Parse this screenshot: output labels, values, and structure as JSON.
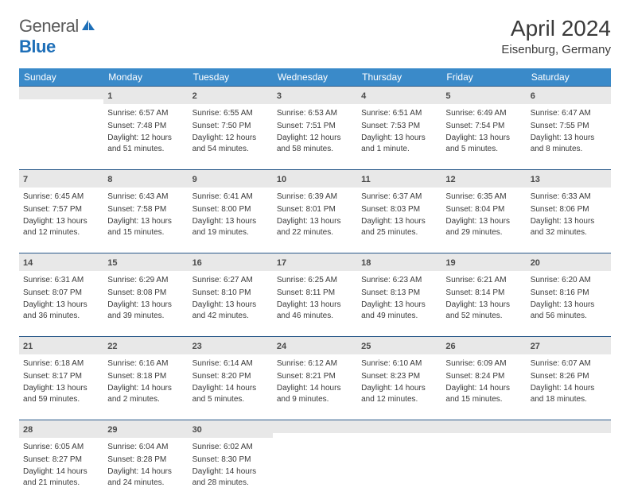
{
  "logo": {
    "text_gray": "General",
    "text_blue": "Blue"
  },
  "header": {
    "month": "April 2024",
    "location": "Eisenburg, Germany"
  },
  "weekdays": [
    "Sunday",
    "Monday",
    "Tuesday",
    "Wednesday",
    "Thursday",
    "Friday",
    "Saturday"
  ],
  "colors": {
    "header_bg": "#3a8ac9",
    "daynum_bg": "#e8e8e8",
    "rule": "#2a5a8a"
  },
  "weeks": [
    [
      null,
      {
        "n": "1",
        "sr": "Sunrise: 6:57 AM",
        "ss": "Sunset: 7:48 PM",
        "dl": "Daylight: 12 hours and 51 minutes."
      },
      {
        "n": "2",
        "sr": "Sunrise: 6:55 AM",
        "ss": "Sunset: 7:50 PM",
        "dl": "Daylight: 12 hours and 54 minutes."
      },
      {
        "n": "3",
        "sr": "Sunrise: 6:53 AM",
        "ss": "Sunset: 7:51 PM",
        "dl": "Daylight: 12 hours and 58 minutes."
      },
      {
        "n": "4",
        "sr": "Sunrise: 6:51 AM",
        "ss": "Sunset: 7:53 PM",
        "dl": "Daylight: 13 hours and 1 minute."
      },
      {
        "n": "5",
        "sr": "Sunrise: 6:49 AM",
        "ss": "Sunset: 7:54 PM",
        "dl": "Daylight: 13 hours and 5 minutes."
      },
      {
        "n": "6",
        "sr": "Sunrise: 6:47 AM",
        "ss": "Sunset: 7:55 PM",
        "dl": "Daylight: 13 hours and 8 minutes."
      }
    ],
    [
      {
        "n": "7",
        "sr": "Sunrise: 6:45 AM",
        "ss": "Sunset: 7:57 PM",
        "dl": "Daylight: 13 hours and 12 minutes."
      },
      {
        "n": "8",
        "sr": "Sunrise: 6:43 AM",
        "ss": "Sunset: 7:58 PM",
        "dl": "Daylight: 13 hours and 15 minutes."
      },
      {
        "n": "9",
        "sr": "Sunrise: 6:41 AM",
        "ss": "Sunset: 8:00 PM",
        "dl": "Daylight: 13 hours and 19 minutes."
      },
      {
        "n": "10",
        "sr": "Sunrise: 6:39 AM",
        "ss": "Sunset: 8:01 PM",
        "dl": "Daylight: 13 hours and 22 minutes."
      },
      {
        "n": "11",
        "sr": "Sunrise: 6:37 AM",
        "ss": "Sunset: 8:03 PM",
        "dl": "Daylight: 13 hours and 25 minutes."
      },
      {
        "n": "12",
        "sr": "Sunrise: 6:35 AM",
        "ss": "Sunset: 8:04 PM",
        "dl": "Daylight: 13 hours and 29 minutes."
      },
      {
        "n": "13",
        "sr": "Sunrise: 6:33 AM",
        "ss": "Sunset: 8:06 PM",
        "dl": "Daylight: 13 hours and 32 minutes."
      }
    ],
    [
      {
        "n": "14",
        "sr": "Sunrise: 6:31 AM",
        "ss": "Sunset: 8:07 PM",
        "dl": "Daylight: 13 hours and 36 minutes."
      },
      {
        "n": "15",
        "sr": "Sunrise: 6:29 AM",
        "ss": "Sunset: 8:08 PM",
        "dl": "Daylight: 13 hours and 39 minutes."
      },
      {
        "n": "16",
        "sr": "Sunrise: 6:27 AM",
        "ss": "Sunset: 8:10 PM",
        "dl": "Daylight: 13 hours and 42 minutes."
      },
      {
        "n": "17",
        "sr": "Sunrise: 6:25 AM",
        "ss": "Sunset: 8:11 PM",
        "dl": "Daylight: 13 hours and 46 minutes."
      },
      {
        "n": "18",
        "sr": "Sunrise: 6:23 AM",
        "ss": "Sunset: 8:13 PM",
        "dl": "Daylight: 13 hours and 49 minutes."
      },
      {
        "n": "19",
        "sr": "Sunrise: 6:21 AM",
        "ss": "Sunset: 8:14 PM",
        "dl": "Daylight: 13 hours and 52 minutes."
      },
      {
        "n": "20",
        "sr": "Sunrise: 6:20 AM",
        "ss": "Sunset: 8:16 PM",
        "dl": "Daylight: 13 hours and 56 minutes."
      }
    ],
    [
      {
        "n": "21",
        "sr": "Sunrise: 6:18 AM",
        "ss": "Sunset: 8:17 PM",
        "dl": "Daylight: 13 hours and 59 minutes."
      },
      {
        "n": "22",
        "sr": "Sunrise: 6:16 AM",
        "ss": "Sunset: 8:18 PM",
        "dl": "Daylight: 14 hours and 2 minutes."
      },
      {
        "n": "23",
        "sr": "Sunrise: 6:14 AM",
        "ss": "Sunset: 8:20 PM",
        "dl": "Daylight: 14 hours and 5 minutes."
      },
      {
        "n": "24",
        "sr": "Sunrise: 6:12 AM",
        "ss": "Sunset: 8:21 PM",
        "dl": "Daylight: 14 hours and 9 minutes."
      },
      {
        "n": "25",
        "sr": "Sunrise: 6:10 AM",
        "ss": "Sunset: 8:23 PM",
        "dl": "Daylight: 14 hours and 12 minutes."
      },
      {
        "n": "26",
        "sr": "Sunrise: 6:09 AM",
        "ss": "Sunset: 8:24 PM",
        "dl": "Daylight: 14 hours and 15 minutes."
      },
      {
        "n": "27",
        "sr": "Sunrise: 6:07 AM",
        "ss": "Sunset: 8:26 PM",
        "dl": "Daylight: 14 hours and 18 minutes."
      }
    ],
    [
      {
        "n": "28",
        "sr": "Sunrise: 6:05 AM",
        "ss": "Sunset: 8:27 PM",
        "dl": "Daylight: 14 hours and 21 minutes."
      },
      {
        "n": "29",
        "sr": "Sunrise: 6:04 AM",
        "ss": "Sunset: 8:28 PM",
        "dl": "Daylight: 14 hours and 24 minutes."
      },
      {
        "n": "30",
        "sr": "Sunrise: 6:02 AM",
        "ss": "Sunset: 8:30 PM",
        "dl": "Daylight: 14 hours and 28 minutes."
      },
      null,
      null,
      null,
      null
    ]
  ]
}
